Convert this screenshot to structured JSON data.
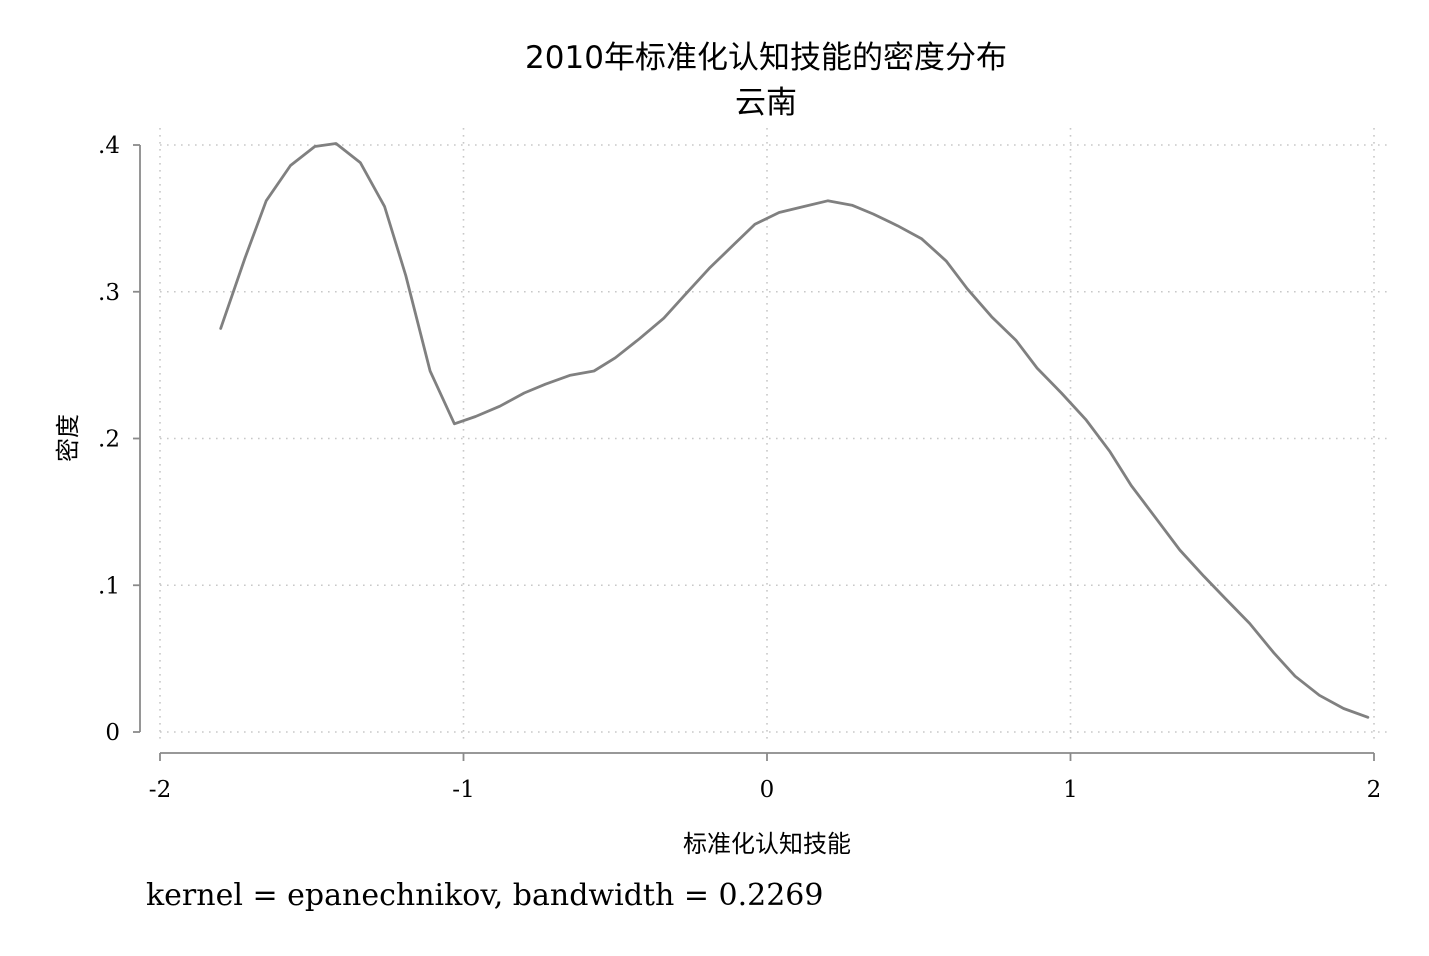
{
  "chart_data": {
    "type": "line",
    "title": "2010年标准化认知技能的密度分布",
    "subtitle": "云南",
    "xlabel": "标准化认知技能",
    "ylabel": "密度",
    "note": "kernel = epanechnikov, bandwidth = 0.2269",
    "xlim": [
      -2,
      2
    ],
    "ylim": [
      0,
      0.4
    ],
    "xticks": [
      -2,
      -1,
      0,
      1,
      2
    ],
    "xtick_labels": [
      "-2",
      "-1",
      "0",
      "1",
      "2"
    ],
    "yticks": [
      0,
      0.1,
      0.2,
      0.3,
      0.4
    ],
    "ytick_labels": [
      "0",
      ".1",
      ".2",
      ".3",
      ".4"
    ],
    "grid": "dotted",
    "line_color": "#808080",
    "series": [
      {
        "x": [
          -1.8,
          -1.72,
          -1.65,
          -1.57,
          -1.49,
          -1.42,
          -1.34,
          -1.26,
          -1.19,
          -1.11,
          -1.03,
          -0.96,
          -0.88,
          -0.8,
          -0.73,
          -0.65,
          -0.57,
          -0.5,
          -0.42,
          -0.34,
          -0.27,
          -0.19,
          -0.11,
          -0.04,
          0.04,
          0.12,
          0.2,
          0.28,
          0.35,
          0.43,
          0.51,
          0.59,
          0.66,
          0.74,
          0.82,
          0.89,
          0.97,
          1.05,
          1.13,
          1.2,
          1.28,
          1.36,
          1.44,
          1.51,
          1.59,
          1.67,
          1.74,
          1.82,
          1.9,
          1.98
        ],
        "y": [
          0.275,
          0.323,
          0.362,
          0.386,
          0.399,
          0.401,
          0.388,
          0.358,
          0.311,
          0.246,
          0.21,
          0.215,
          0.222,
          0.231,
          0.237,
          0.243,
          0.246,
          0.255,
          0.268,
          0.282,
          0.298,
          0.316,
          0.332,
          0.346,
          0.354,
          0.358,
          0.362,
          0.359,
          0.353,
          0.345,
          0.336,
          0.321,
          0.302,
          0.283,
          0.267,
          0.248,
          0.231,
          0.213,
          0.191,
          0.168,
          0.146,
          0.124,
          0.106,
          0.091,
          0.074,
          0.054,
          0.038,
          0.025,
          0.016,
          0.01
        ]
      }
    ]
  }
}
